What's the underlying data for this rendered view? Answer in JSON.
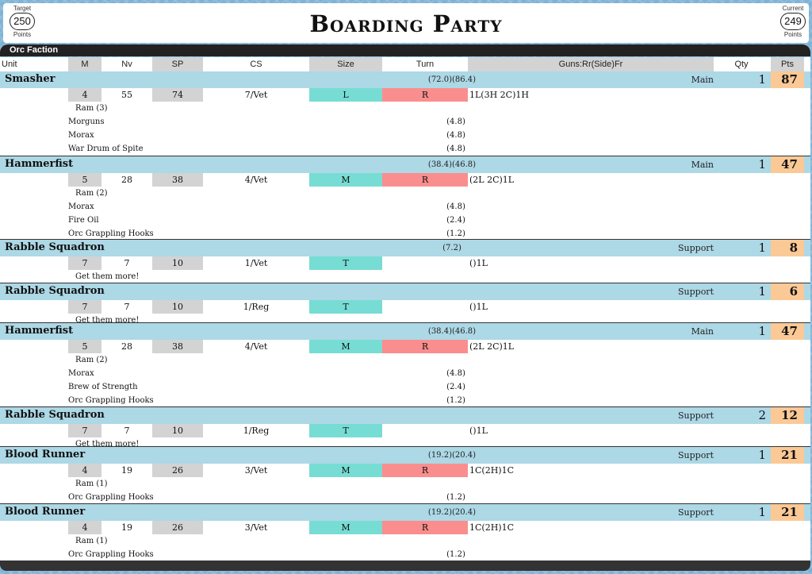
{
  "header": {
    "title": "Boarding Party",
    "target": {
      "top": "Target",
      "value": "250",
      "bottom": "Points"
    },
    "current": {
      "top": "Current",
      "value": "249",
      "bottom": "Points"
    }
  },
  "faction": "Orc Faction",
  "columns": {
    "unit": "Unit",
    "m": "M",
    "nv": "Nv",
    "sp": "SP",
    "cs": "CS",
    "size": "Size",
    "turn": "Turn",
    "guns": "Guns:Rr(Side)Fr",
    "qty": "Qty",
    "pts": "Pts"
  },
  "colors": {
    "title_row": "#add8e6",
    "size_cell": "#77ddd4",
    "turn_cell": "#fa8e8e",
    "points_cell": "#fbc996",
    "faction_bar": "#222222"
  },
  "units": [
    {
      "name": "Smasher",
      "cost": "(72.0)(86.4)",
      "role": "Main",
      "qty": "1",
      "pts": "87",
      "stats": {
        "m": "4",
        "nv": "55",
        "sp": "74",
        "cs": "7/Vet",
        "size": "L",
        "turn": "R",
        "guns": "1L(3H 2C)1H"
      },
      "ram": "Ram (3)",
      "note": "",
      "addons": [
        {
          "name": "Morguns",
          "cost": "(4.8)"
        },
        {
          "name": "Morax",
          "cost": "(4.8)"
        },
        {
          "name": "War Drum of Spite",
          "cost": "(4.8)"
        }
      ]
    },
    {
      "name": "Hammerfist",
      "cost": "(38.4)(46.8)",
      "role": "Main",
      "qty": "1",
      "pts": "47",
      "stats": {
        "m": "5",
        "nv": "28",
        "sp": "38",
        "cs": "4/Vet",
        "size": "M",
        "turn": "R",
        "guns": "(2L 2C)1L"
      },
      "ram": "Ram (2)",
      "note": "",
      "addons": [
        {
          "name": "Morax",
          "cost": "(4.8)"
        },
        {
          "name": "Fire Oil",
          "cost": "(2.4)"
        },
        {
          "name": "Orc Grappling Hooks",
          "cost": "(1.2)"
        }
      ]
    },
    {
      "name": "Rabble Squadron",
      "cost": "(7.2)",
      "role": "Support",
      "qty": "1",
      "pts": "8",
      "stats": {
        "m": "7",
        "nv": "7",
        "sp": "10",
        "cs": "1/Vet",
        "size": "T",
        "turn": "",
        "guns": "()1L"
      },
      "ram": "",
      "note": "Get them more!",
      "addons": []
    },
    {
      "name": "Rabble Squadron",
      "cost": "",
      "role": "Support",
      "qty": "1",
      "pts": "6",
      "stats": {
        "m": "7",
        "nv": "7",
        "sp": "10",
        "cs": "1/Reg",
        "size": "T",
        "turn": "",
        "guns": "()1L"
      },
      "ram": "",
      "note": "Get them more!",
      "addons": []
    },
    {
      "name": "Hammerfist",
      "cost": "(38.4)(46.8)",
      "role": "Main",
      "qty": "1",
      "pts": "47",
      "stats": {
        "m": "5",
        "nv": "28",
        "sp": "38",
        "cs": "4/Vet",
        "size": "M",
        "turn": "R",
        "guns": "(2L 2C)1L"
      },
      "ram": "Ram (2)",
      "note": "",
      "addons": [
        {
          "name": "Morax",
          "cost": "(4.8)"
        },
        {
          "name": "Brew of Strength",
          "cost": "(2.4)"
        },
        {
          "name": "Orc Grappling Hooks",
          "cost": "(1.2)"
        }
      ]
    },
    {
      "name": "Rabble Squadron",
      "cost": "",
      "role": "Support",
      "qty": "2",
      "pts": "12",
      "stats": {
        "m": "7",
        "nv": "7",
        "sp": "10",
        "cs": "1/Reg",
        "size": "T",
        "turn": "",
        "guns": "()1L"
      },
      "ram": "",
      "note": "Get them more!",
      "addons": []
    },
    {
      "name": "Blood Runner",
      "cost": "(19.2)(20.4)",
      "role": "Support",
      "qty": "1",
      "pts": "21",
      "stats": {
        "m": "4",
        "nv": "19",
        "sp": "26",
        "cs": "3/Vet",
        "size": "M",
        "turn": "R",
        "guns": "1C(2H)1C"
      },
      "ram": "Ram (1)",
      "note": "",
      "addons": [
        {
          "name": "Orc Grappling Hooks",
          "cost": "(1.2)"
        }
      ]
    },
    {
      "name": "Blood Runner",
      "cost": "(19.2)(20.4)",
      "role": "Support",
      "qty": "1",
      "pts": "21",
      "stats": {
        "m": "4",
        "nv": "19",
        "sp": "26",
        "cs": "3/Vet",
        "size": "M",
        "turn": "R",
        "guns": "1C(2H)1C"
      },
      "ram": "Ram (1)",
      "note": "",
      "addons": [
        {
          "name": "Orc Grappling Hooks",
          "cost": "(1.2)"
        }
      ]
    }
  ]
}
